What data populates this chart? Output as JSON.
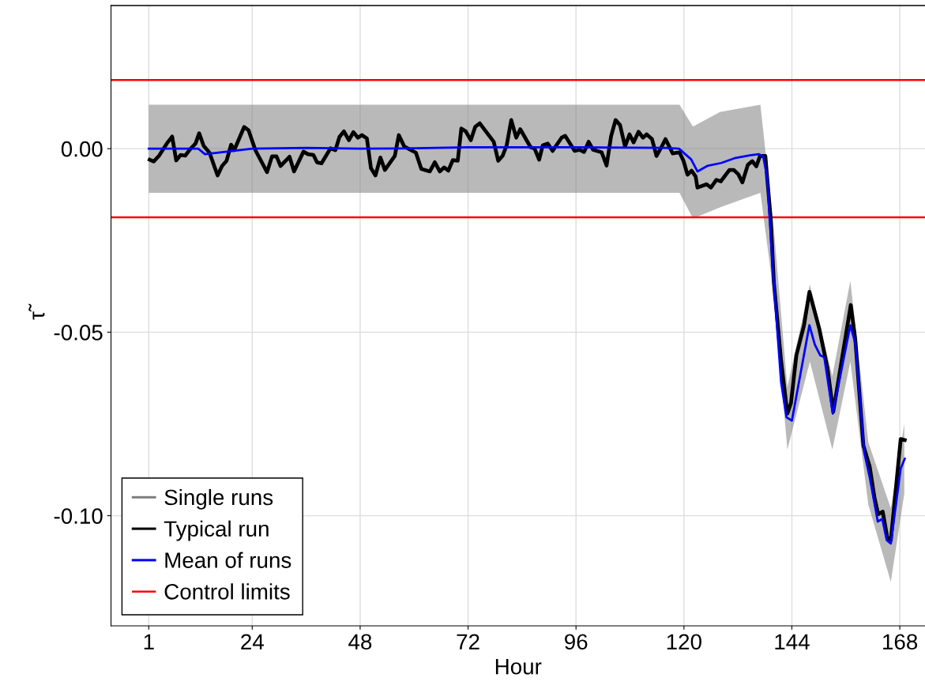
{
  "chart_data": {
    "type": "line",
    "xlabel": "Hour",
    "ylabel": "τ̃",
    "xlim": [
      -7.4,
      173.6
    ],
    "ylim": [
      -0.13,
      0.039
    ],
    "xticks": [
      1,
      24,
      48,
      72,
      96,
      120,
      144,
      168
    ],
    "yticks": [
      {
        "value": 0,
        "label": "0.00"
      },
      {
        "value": -0.05,
        "label": "-0.05"
      },
      {
        "value": -0.1,
        "label": "-0.10"
      }
    ],
    "grid": true,
    "legend": "bottom left",
    "marker": "none",
    "line_style": "solid",
    "series": [
      {
        "name": "Single runs",
        "color": "#808080",
        "x": [
          1,
          119,
          122,
          128,
          137,
          140,
          143,
          148,
          153,
          157,
          161,
          166,
          169
        ],
        "values": [
          null,
          null,
          null,
          null,
          null,
          null,
          null,
          null,
          null,
          null,
          null,
          null,
          null
        ],
        "lower": [
          -0.012,
          -0.012,
          -0.019,
          -0.016,
          -0.012,
          -0.04,
          -0.082,
          -0.058,
          -0.082,
          -0.058,
          -0.097,
          -0.118,
          -0.094
        ],
        "upper": [
          0.012,
          0.012,
          0.006,
          0.01,
          0.012,
          -0.022,
          -0.065,
          -0.037,
          -0.062,
          -0.036,
          -0.08,
          -0.098,
          -0.075
        ]
      },
      {
        "name": "Typical run",
        "color": "#000000",
        "x": [
          1.2,
          2.1,
          3.3,
          5,
          6.2,
          7.1,
          8.1,
          9.1,
          10.3,
          11.4,
          12.2,
          13.2,
          14.5,
          16.3,
          17.3,
          18.3,
          19.3,
          20,
          22.2,
          23.2,
          24.7,
          27.3,
          28.4,
          29.4,
          30.3,
          32.3,
          33.3,
          35.4,
          36.4,
          37.6,
          38.4,
          39.4,
          41.4,
          42.5,
          43.4,
          44.4,
          45.5,
          46.5,
          47.5,
          48.4,
          49.5,
          50.4,
          51.4,
          52.5,
          53.5,
          55.7,
          56.6,
          57.8,
          60.4,
          61.6,
          63.5,
          64.6,
          65.7,
          66.7,
          67.6,
          68.6,
          69.7,
          70.5,
          71.5,
          72.6,
          73.6,
          74.6,
          77.7,
          78.7,
          79.7,
          80.6,
          81.6,
          82.7,
          83.6,
          85.9,
          86.8,
          87.8,
          88.6,
          89.7,
          90.8,
          92.8,
          93.6,
          95.7,
          96.8,
          97.8,
          98.8,
          99.8,
          101.7,
          102.8,
          103.8,
          104.8,
          105.8,
          106.9,
          107.9,
          108.8,
          109.9,
          110.9,
          111.7,
          112.9,
          113.9,
          114.9,
          115.9,
          117.5,
          119,
          119.9,
          120.8,
          121.7,
          122.6,
          123,
          125,
          126,
          127.2,
          128.2,
          130.1,
          131.1,
          132.1,
          133,
          134.2,
          135.2,
          136.1,
          136.9,
          138.1,
          139.3,
          140,
          141.6,
          143,
          143.8,
          145,
          146.7,
          147.9,
          150.1,
          151.9,
          153.2,
          157.1,
          158.1,
          159.9,
          161.3,
          162.4,
          163.2,
          164.2,
          165.2,
          166,
          168.2,
          169.1
        ],
        "values": [
          -0.003,
          -0.0035,
          -0.0019,
          0.0014,
          0.0033,
          -0.0032,
          -0.0017,
          -0.0019,
          0,
          0.0014,
          0.0042,
          0.0008,
          -0.0011,
          -0.0073,
          -0.0047,
          -0.0033,
          0.0011,
          -0.0004,
          0.0059,
          0.005,
          -0.0004,
          -0.0064,
          -0.0021,
          -0.0021,
          -0.0047,
          -0.0022,
          -0.0062,
          -0.0008,
          -0.0015,
          -0.0017,
          -0.0037,
          -0.004,
          0.0001,
          -0.0004,
          0.0032,
          0.0047,
          0.0023,
          0.0045,
          0.003,
          0.0037,
          0.0028,
          -0.0053,
          -0.0073,
          -0.0024,
          -0.0058,
          -0.002,
          0.0037,
          0.0006,
          -0.0011,
          -0.0055,
          -0.0062,
          -0.0037,
          -0.0062,
          -0.0051,
          -0.006,
          -0.0031,
          -0.0033,
          0.0055,
          0.0047,
          0.0023,
          0.006,
          0.0069,
          0.0019,
          -0.0033,
          -0.0019,
          0.001,
          0.0078,
          0.003,
          0.0053,
          0.0004,
          0,
          -0.003,
          0.0009,
          0.0014,
          -0.0006,
          0.003,
          0.0035,
          -0.0006,
          -0.0003,
          -0.0009,
          0.0019,
          -0.0003,
          -0.001,
          -0.0046,
          0.0034,
          0.0078,
          0.0064,
          0.0006,
          0.0039,
          0.0017,
          0.0046,
          0.003,
          0.0039,
          0.0026,
          -0.002,
          0.0002,
          0.0026,
          -0.0013,
          -0.001,
          -0.0033,
          -0.0071,
          -0.006,
          -0.0076,
          -0.0106,
          -0.0097,
          -0.0106,
          -0.0085,
          -0.0089,
          -0.0058,
          -0.0058,
          -0.007,
          -0.0092,
          -0.0044,
          -0.0034,
          -0.0048,
          -0.002,
          -0.002,
          -0.0193,
          -0.0366,
          -0.0578,
          -0.0722,
          -0.0693,
          -0.0563,
          -0.0481,
          -0.039,
          -0.0491,
          -0.0597,
          -0.0717,
          -0.0426,
          -0.052,
          -0.0809,
          -0.0866,
          -0.0953,
          -0.0996,
          -0.0989,
          -0.1059,
          -0.1067,
          -0.0791,
          -0.0794
        ]
      },
      {
        "name": "Mean of runs",
        "color": "#0000ff",
        "x": [
          1,
          12,
          13.5,
          24,
          36,
          48,
          60,
          72,
          96,
          115.8,
          118.9,
          121.6,
          123,
          125.2,
          128.3,
          131.5,
          134.6,
          136.6,
          137.6,
          138.5,
          139.7,
          141.6,
          142.8,
          144,
          147.9,
          149.1,
          150.3,
          151.2,
          153.1,
          157,
          158.1,
          160.1,
          161.3,
          163.1,
          164.1,
          165.1,
          166,
          168.2,
          169.1
        ],
        "values": [
          0,
          0,
          -0.0015,
          0,
          0.0002,
          0,
          0.0001,
          0.0004,
          0.0004,
          0.0002,
          0,
          -0.0029,
          -0.0062,
          -0.0047,
          -0.0039,
          -0.0025,
          -0.0018,
          -0.0015,
          -0.002,
          -0.0077,
          -0.0318,
          -0.0636,
          -0.0732,
          -0.0741,
          -0.0481,
          -0.0534,
          -0.0563,
          -0.0568,
          -0.0722,
          -0.0481,
          -0.053,
          -0.0828,
          -0.0895,
          -0.1016,
          -0.1009,
          -0.1067,
          -0.1076,
          -0.0871,
          -0.0845
        ]
      }
    ],
    "ref_lines": [
      {
        "axis": "y",
        "value": 0.0187,
        "label": "Control limits",
        "color": "#ff0000"
      },
      {
        "axis": "y",
        "value": -0.0187,
        "color": "#ff0000"
      }
    ]
  }
}
